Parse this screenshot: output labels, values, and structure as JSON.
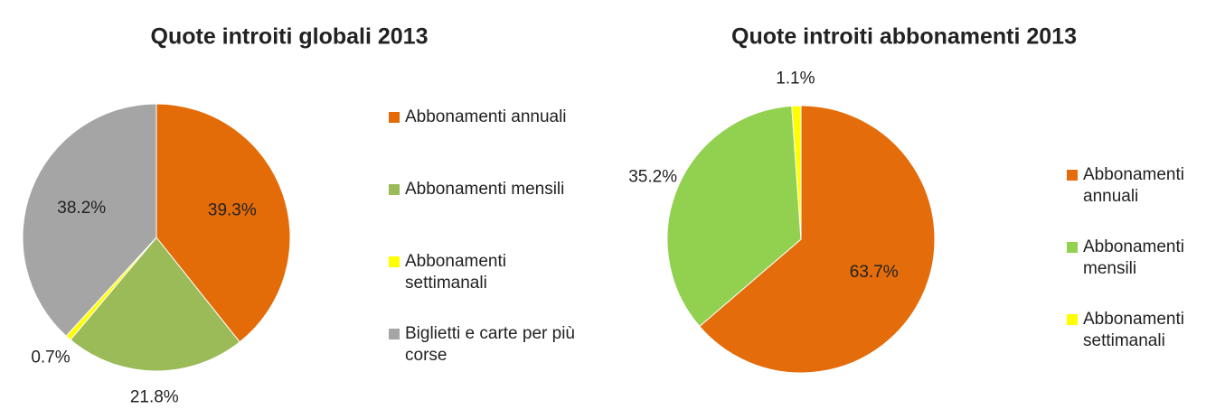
{
  "chart_data": [
    {
      "type": "pie",
      "title": "Quote introiti globali 2013",
      "categories": [
        "Abbonamenti annuali",
        "Abbonamenti mensili",
        "Abbonamenti settimanali",
        "Biglietti e carte per più corse"
      ],
      "values": [
        39.3,
        21.8,
        0.7,
        38.2
      ],
      "value_labels": [
        "39.3%",
        "21.8%",
        "0.7%",
        "38.2%"
      ],
      "colors": [
        "#e36c09",
        "#9bbb59",
        "#ffff00",
        "#a5a5a5"
      ],
      "legend": "right"
    },
    {
      "type": "pie",
      "title": "Quote introiti abbonamenti 2013",
      "categories": [
        "Abbonamenti annuali",
        "Abbonamenti mensili",
        "Abbonamenti settimanali"
      ],
      "values": [
        63.7,
        35.2,
        1.1
      ],
      "value_labels": [
        "63.7%",
        "35.2%",
        "1.1%"
      ],
      "colors": [
        "#e46c0a",
        "#92d050",
        "#ffff00"
      ],
      "legend": "right"
    }
  ]
}
